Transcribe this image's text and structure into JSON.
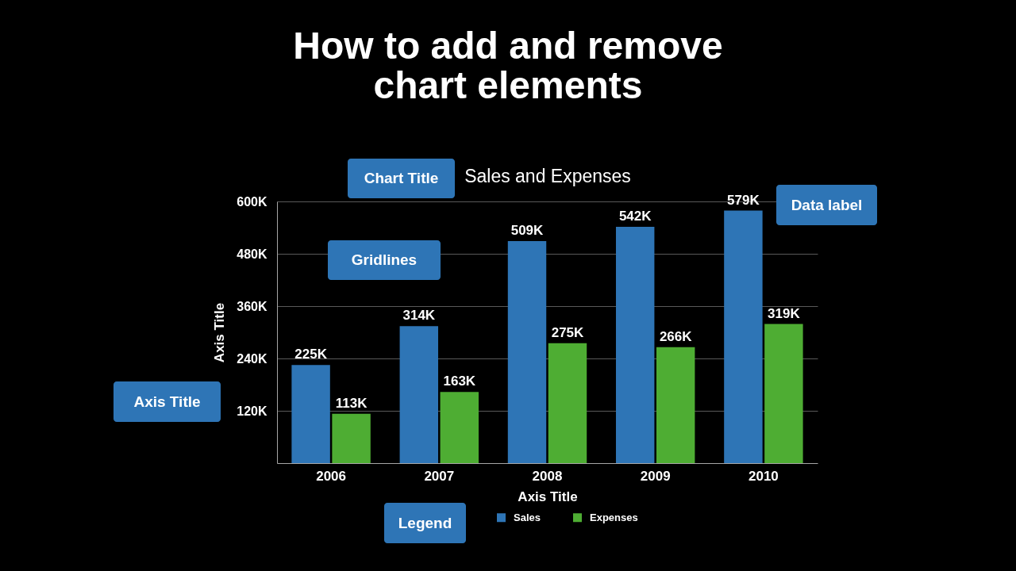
{
  "chart_data": {
    "type": "bar",
    "title": "How to add and remove\nchart elements",
    "subtitle": "Sales and Expenses",
    "xlabel": "Axis Title",
    "ylabel": "Axis Title",
    "annotations": [
      "Chart Title",
      "Data label",
      "Gridlines",
      "Axis Title",
      "Legend"
    ],
    "categories": [
      "2006",
      "2007",
      "2008",
      "2009",
      "2010"
    ],
    "series": [
      {
        "name": "Sales",
        "color": "#2e75b6",
        "values": [
          225000,
          314000,
          509000,
          542000,
          579000
        ],
        "value_labels": [
          "225K",
          "314K",
          "509K",
          "542K",
          "579K"
        ]
      },
      {
        "name": "Expenses",
        "color": "#4ead33",
        "values": [
          113000,
          163000,
          275000,
          266000,
          319000
        ],
        "value_labels": [
          "113K",
          "163K",
          "275K",
          "266K",
          "319K"
        ]
      }
    ],
    "ylim": [
      0,
      600000
    ],
    "yticks": [
      {
        "value": 120000,
        "label": "120K"
      },
      {
        "value": 240000,
        "label": "240K"
      },
      {
        "value": 360000,
        "label": "360K"
      },
      {
        "value": 480000,
        "label": "480K"
      },
      {
        "value": 600000,
        "label": "600K"
      }
    ],
    "grid": "y",
    "legend": "bottom"
  }
}
